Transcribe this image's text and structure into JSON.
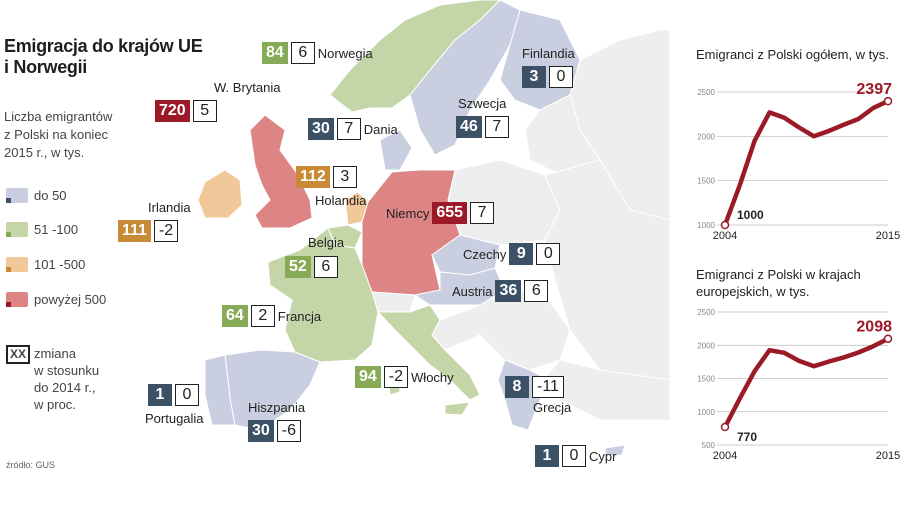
{
  "title_line1": "Emigracja do krajów UE",
  "title_line2": "i Norwegii",
  "subtitle_lines": [
    "Liczba emigrantów",
    "z Polski na koniec",
    "2015 r., w tys."
  ],
  "legend": [
    {
      "label": "do 50",
      "color": "#c9cfe0",
      "corner": "#3d5166"
    },
    {
      "label": "51 -100",
      "color": "#c4d6a8",
      "corner": "#86aa55"
    },
    {
      "label": "101 -500",
      "color": "#f0c89a",
      "corner": "#c98a35"
    },
    {
      "label": "powyżej 500",
      "color": "#dd8484",
      "corner": "#9c1a27"
    }
  ],
  "change_note": {
    "box": "XX",
    "lines": [
      "zmiana",
      "w stosunku",
      "do 2014 r.,",
      "w proc."
    ]
  },
  "source": "źródło: GUS",
  "countries": [
    {
      "name": "Norwegia",
      "value": "84",
      "change": "6",
      "cls": "c-green"
    },
    {
      "name": "Finlandia",
      "value": "3",
      "change": "0",
      "cls": "c-dark"
    },
    {
      "name": "W. Brytania",
      "value": "720",
      "change": "5",
      "cls": "c-red"
    },
    {
      "name": "Szwecja",
      "value": "46",
      "change": "7",
      "cls": "c-dark"
    },
    {
      "name": "Dania",
      "value": "30",
      "change": "7",
      "cls": "c-dark"
    },
    {
      "name": "Holandia",
      "value": "112",
      "change": "3",
      "cls": "c-orange"
    },
    {
      "name": "Irlandia",
      "value": "111",
      "change": "-2",
      "cls": "c-orange"
    },
    {
      "name": "Niemcy",
      "value": "655",
      "change": "7",
      "cls": "c-red"
    },
    {
      "name": "Belgia",
      "value": "52",
      "change": "6",
      "cls": "c-green"
    },
    {
      "name": "Czechy",
      "value": "9",
      "change": "0",
      "cls": "c-dark"
    },
    {
      "name": "Austria",
      "value": "36",
      "change": "6",
      "cls": "c-dark"
    },
    {
      "name": "Francja",
      "value": "64",
      "change": "2",
      "cls": "c-green"
    },
    {
      "name": "Włochy",
      "value": "94",
      "change": "-2",
      "cls": "c-green"
    },
    {
      "name": "Portugalia",
      "value": "1",
      "change": "0",
      "cls": "c-dark"
    },
    {
      "name": "Hiszpania",
      "value": "30",
      "change": "-6",
      "cls": "c-dark"
    },
    {
      "name": "Grecja",
      "value": "8",
      "change": "-11",
      "cls": "c-dark"
    },
    {
      "name": "Cypr",
      "value": "1",
      "change": "0",
      "cls": "c-dark"
    }
  ],
  "chart_data": [
    {
      "type": "line",
      "title": "Emigranci z Polski ogółem, w tys.",
      "x": [
        2004,
        2005,
        2006,
        2007,
        2008,
        2009,
        2010,
        2011,
        2012,
        2013,
        2014,
        2015
      ],
      "series": [
        {
          "values": [
            1000,
            1450,
            1950,
            2270,
            2210,
            2100,
            2000,
            2060,
            2130,
            2196,
            2320,
            2397
          ]
        }
      ],
      "xticks": [
        "2004",
        "2015"
      ],
      "yticks": [
        "1000",
        "1500",
        "2000",
        "2500"
      ],
      "ylim": [
        1000,
        2500
      ],
      "start_label": "1000",
      "end_label": "2397",
      "grid": true
    },
    {
      "type": "line",
      "title": "Emigranci z Polski w krajach europejskich, w tys.",
      "x": [
        2004,
        2005,
        2006,
        2007,
        2008,
        2009,
        2010,
        2011,
        2012,
        2013,
        2014,
        2015
      ],
      "series": [
        {
          "values": [
            770,
            1200,
            1610,
            1925,
            1887,
            1765,
            1685,
            1754,
            1816,
            1891,
            1984,
            2098
          ]
        }
      ],
      "xticks": [
        "2004",
        "2015"
      ],
      "yticks": [
        "500",
        "1000",
        "1500",
        "2000",
        "2500"
      ],
      "ylim": [
        500,
        2500
      ],
      "start_label": "770",
      "end_label": "2098",
      "grid": true
    }
  ]
}
